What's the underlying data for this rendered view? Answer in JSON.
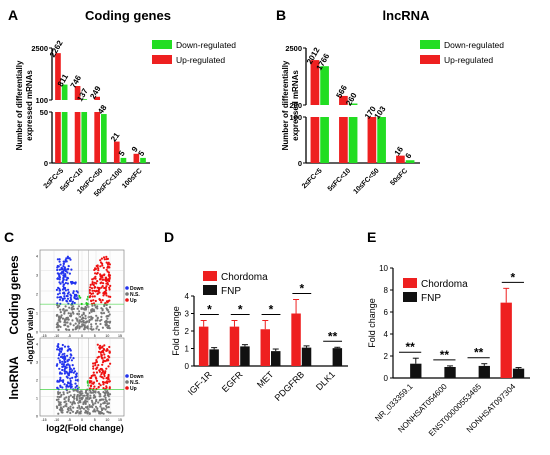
{
  "panels": {
    "A": {
      "letter": "A",
      "title": "Coding genes"
    },
    "B": {
      "letter": "B",
      "title": "lncRNA"
    },
    "C": {
      "letter": "C",
      "row_labels": [
        "Coding genes",
        "lncRNA"
      ]
    },
    "D": {
      "letter": "D"
    },
    "E": {
      "letter": "E"
    }
  },
  "chart_data": [
    {
      "panel": "A",
      "type": "bar",
      "title": "Coding genes",
      "ylabel": "Number of differentially expressed mRNAs",
      "categories": [
        "2≤FC<5",
        "5≤FC<10",
        "10≤FC<50",
        "50≤FC<100",
        "100≤FC"
      ],
      "series": [
        {
          "name": "Up-regulated",
          "color": "#ee2020",
          "values": [
            2262,
            746,
            249,
            21,
            9
          ]
        },
        {
          "name": "Down-regulated",
          "color": "#22dd22",
          "values": [
            811,
            137,
            48,
            5,
            5
          ]
        }
      ],
      "y_ticks": [
        "0",
        "50",
        "100",
        "2500"
      ],
      "axis_break": [
        50,
        100
      ],
      "legend": "top-right"
    },
    {
      "panel": "B",
      "type": "bar",
      "title": "lncRNA",
      "ylabel": "Number of differentially expressed mRNAs",
      "categories": [
        "2≤FC<5",
        "5≤FC<10",
        "10≤FC<50",
        "50≤FC"
      ],
      "series": [
        {
          "name": "Up-regulated",
          "color": "#ee2020",
          "values": [
            2012,
            566,
            170,
            16
          ]
        },
        {
          "name": "Down-regulated",
          "color": "#22dd22",
          "values": [
            1766,
            260,
            103,
            6
          ]
        }
      ],
      "y_ticks": [
        "0",
        "100",
        "200",
        "2500"
      ],
      "axis_break": [
        100,
        200
      ],
      "legend": "top-right"
    },
    {
      "panel": "C",
      "type": "scatter",
      "xlabel": "log2(Fold change)",
      "ylabel": "-log10(P value)",
      "legend": [
        "Down",
        "N.S.",
        "Up"
      ],
      "colors": {
        "Down": "#2233ee",
        "N.S.": "#777777",
        "Up": "#ee1111",
        "threshold": "#22cc22"
      },
      "x_ticks": [
        "-15",
        "-10",
        "-5",
        "0",
        "5",
        "10",
        "15"
      ],
      "y_ticks": [
        "0",
        "1",
        "2",
        "3",
        "4"
      ],
      "grid": true
    },
    {
      "panel": "D",
      "type": "bar",
      "ylabel": "Fold change",
      "categories": [
        "IGF-1R",
        "EGFR",
        "MET",
        "PDGFRB",
        "DLK1"
      ],
      "series": [
        {
          "name": "Chordoma",
          "color": "#ee2020",
          "values": [
            2.25,
            2.25,
            2.1,
            3.0,
            0
          ],
          "errors": [
            0.35,
            0.35,
            0.5,
            0.8,
            0
          ]
        },
        {
          "name": "FNP",
          "color": "#111111",
          "values": [
            0.95,
            1.12,
            0.85,
            1.05,
            1.02
          ],
          "errors": [
            0.1,
            0.1,
            0.12,
            0.1,
            0.05
          ]
        }
      ],
      "significance": [
        "*",
        "*",
        "*",
        "*",
        "**"
      ],
      "ylim": [
        0,
        4
      ],
      "legend": "top-left"
    },
    {
      "panel": "E",
      "type": "bar",
      "ylabel": "Fold change",
      "categories": [
        "NR_033359.1",
        "NONHSAT054600",
        "ENST00000553465",
        "NONHSAT097304"
      ],
      "series": [
        {
          "name": "Chordoma",
          "color": "#ee2020",
          "values": [
            0,
            0,
            0,
            6.85
          ],
          "errors": [
            0,
            0,
            0,
            1.3
          ]
        },
        {
          "name": "FNP",
          "color": "#111111",
          "values": [
            1.3,
            1.0,
            1.1,
            0.85
          ],
          "errors": [
            0.5,
            0.1,
            0.2,
            0.1
          ]
        }
      ],
      "significance": [
        "**",
        "**",
        "**",
        "*"
      ],
      "ylim": [
        0,
        10
      ],
      "legend": "top-left"
    }
  ]
}
